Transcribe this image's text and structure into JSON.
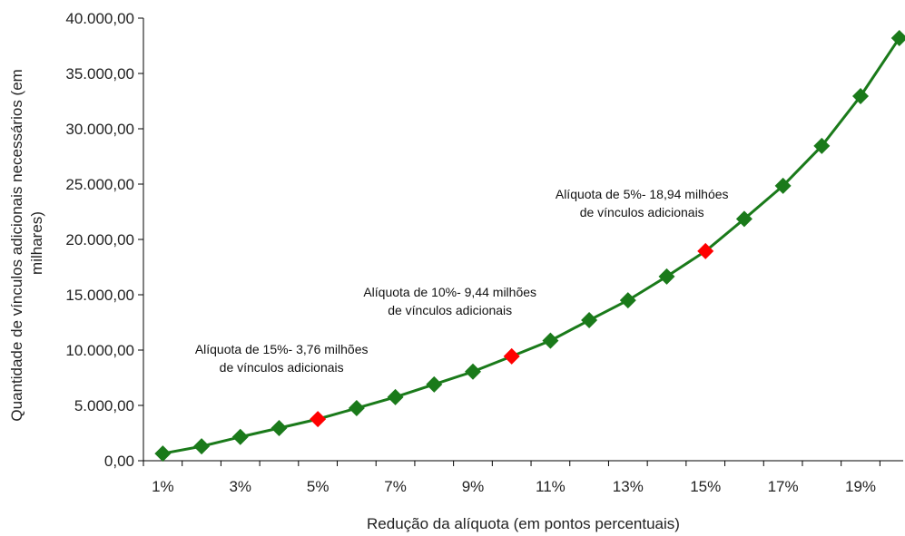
{
  "chart_data": {
    "type": "line",
    "title": "",
    "xlabel": "Redução da alíquota (em pontos percentuais)",
    "ylabel_lines": [
      "Quantidade de vínculos adicionais necessários (em",
      "milhares)"
    ],
    "x": [
      1,
      2,
      3,
      4,
      5,
      6,
      7,
      8,
      9,
      10,
      11,
      12,
      13,
      14,
      15,
      16,
      17,
      18,
      19,
      20
    ],
    "x_tick_labels": [
      {
        "x": 1,
        "label": "1%"
      },
      {
        "x": 3,
        "label": "3%"
      },
      {
        "x": 5,
        "label": "5%"
      },
      {
        "x": 7,
        "label": "7%"
      },
      {
        "x": 9,
        "label": "9%"
      },
      {
        "x": 11,
        "label": "11%"
      },
      {
        "x": 13,
        "label": "13%"
      },
      {
        "x": 15,
        "label": "15%"
      },
      {
        "x": 17,
        "label": "17%"
      },
      {
        "x": 19,
        "label": "19%"
      }
    ],
    "ylim": [
      0,
      40000
    ],
    "y_ticks": [
      {
        "value": 0,
        "label": "0,00"
      },
      {
        "value": 5000,
        "label": "5.000,00"
      },
      {
        "value": 10000,
        "label": "10.000,00"
      },
      {
        "value": 15000,
        "label": "15.000,00"
      },
      {
        "value": 20000,
        "label": "20.000,00"
      },
      {
        "value": 25000,
        "label": "25.000,00"
      },
      {
        "value": 30000,
        "label": "30.000,00"
      },
      {
        "value": 35000,
        "label": "35.000,00"
      },
      {
        "value": 40000,
        "label": "40.000,00"
      }
    ],
    "series": [
      {
        "values": [
          650,
          1300,
          2150,
          2950,
          3760,
          4750,
          5750,
          6900,
          8050,
          9440,
          10850,
          12700,
          14500,
          16650,
          18940,
          21850,
          24850,
          28450,
          32950,
          38200
        ],
        "color": "#1a7a1a",
        "highlight_color": "#ff0000",
        "highlight_x": [
          5,
          10,
          15
        ]
      }
    ],
    "annotations": [
      {
        "x": 5,
        "lines": [
          "Alíquota de 15%- 3,76 milhões",
          "de vínculos adicionais"
        ]
      },
      {
        "x": 10,
        "lines": [
          "Alíquota de 10%- 9,44 milhões",
          "de vínculos adicionais"
        ]
      },
      {
        "x": 15,
        "lines": [
          "Alíquota de 5%- 18,94 milhóes",
          "de vínculos adicionais"
        ]
      }
    ],
    "grid": false,
    "legend": "none"
  }
}
